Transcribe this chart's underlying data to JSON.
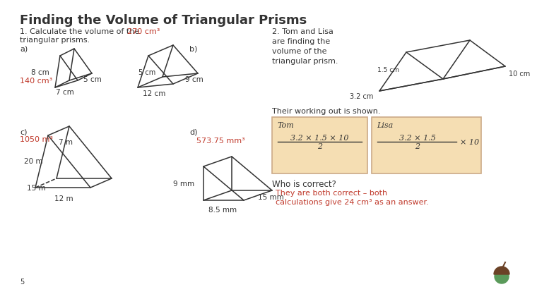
{
  "title": "Finding the Volume of Triangular Prisms",
  "title_fontsize": 13,
  "bg_color": "#ffffff",
  "section1_line1": "1. Calculate the volume of the",
  "section1_line2": "triangular prisms.",
  "section2_line1": "2. Tom and Lisa",
  "section2_line2": "are finding the",
  "section2_line3": "volume of the",
  "section2_line4": "triangular prism.",
  "red_color": "#c0392b",
  "dark_color": "#333333",
  "tan_color": "#f5deb3",
  "tan_border": "#ccaa88",
  "answer_a": "140 cm³",
  "answer_b": "270 cm³",
  "answer_c": "1050 m³",
  "answer_d": "573.75 mm³",
  "dim_a": [
    "8 cm",
    "7 cm",
    "5 cm"
  ],
  "dim_b": [
    "5 cm",
    "12 cm",
    "9 cm"
  ],
  "dim_c": [
    "20 m",
    "7 m",
    "15 m",
    "12 m"
  ],
  "dim_d": [
    "9 mm",
    "8.5 mm",
    "15 mm"
  ],
  "dim_q2": [
    "1.5 cm",
    "3.2 cm",
    "10 cm"
  ],
  "their_working": "Their working out is shown.",
  "tom_label": "Tom",
  "lisa_label": "Lisa",
  "tom_formula": "3.2 × 1.5 × 10",
  "tom_denom": "2",
  "lisa_formula": "3.2 × 1.5",
  "lisa_denom": "2",
  "lisa_extra": "× 10",
  "who_correct": "Who is correct?",
  "answer_text1": "They are both correct – both",
  "answer_text2": "calculations give 24 cm³ as an answer.",
  "slide_number": "5"
}
